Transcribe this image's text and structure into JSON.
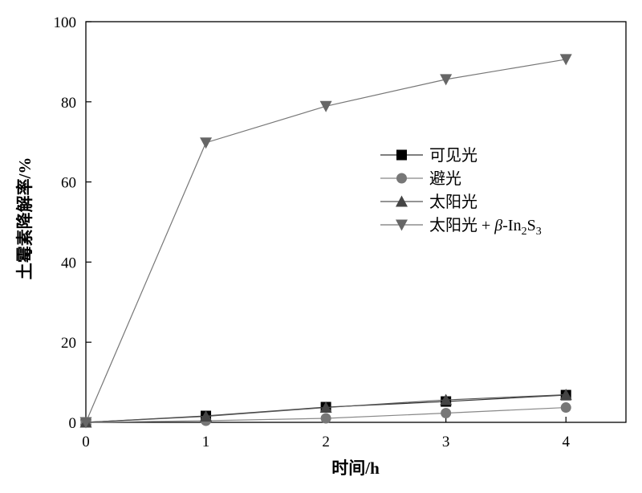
{
  "chart_data": {
    "type": "line",
    "title": "",
    "xlabel": "时间/h",
    "ylabel": "土霉素降解率/%",
    "x": [
      0,
      1,
      2,
      3,
      4
    ],
    "xlim": [
      0,
      4.5
    ],
    "ylim": [
      0,
      100
    ],
    "xticks": [
      0,
      1,
      2,
      3,
      4
    ],
    "yticks": [
      0,
      20,
      40,
      60,
      80,
      100
    ],
    "grid": false,
    "legend_position": "center-right",
    "series": [
      {
        "name": "可见光",
        "marker": "square",
        "color": "#000000",
        "line_color": "#333333",
        "values": [
          0,
          1.6,
          3.8,
          5.2,
          6.8
        ]
      },
      {
        "name": "避光",
        "marker": "circle",
        "color": "#777777",
        "line_color": "#888888",
        "values": [
          0,
          0.4,
          1.0,
          2.3,
          3.7
        ]
      },
      {
        "name": "太阳光",
        "marker": "triangle-up",
        "color": "#444444",
        "line_color": "#555555",
        "values": [
          0,
          1.5,
          3.7,
          5.6,
          6.9
        ]
      },
      {
        "name": "太阳光 + β-In₂S₃",
        "name_parts": {
          "main": "太阳光 + ",
          "beta": "β",
          "tail": "-In",
          "sub1": "2",
          "mid": "S",
          "sub2": "3"
        },
        "marker": "triangle-down",
        "color": "#666666",
        "line_color": "#777777",
        "values": [
          0,
          69.8,
          78.9,
          85.6,
          90.6
        ]
      }
    ]
  }
}
